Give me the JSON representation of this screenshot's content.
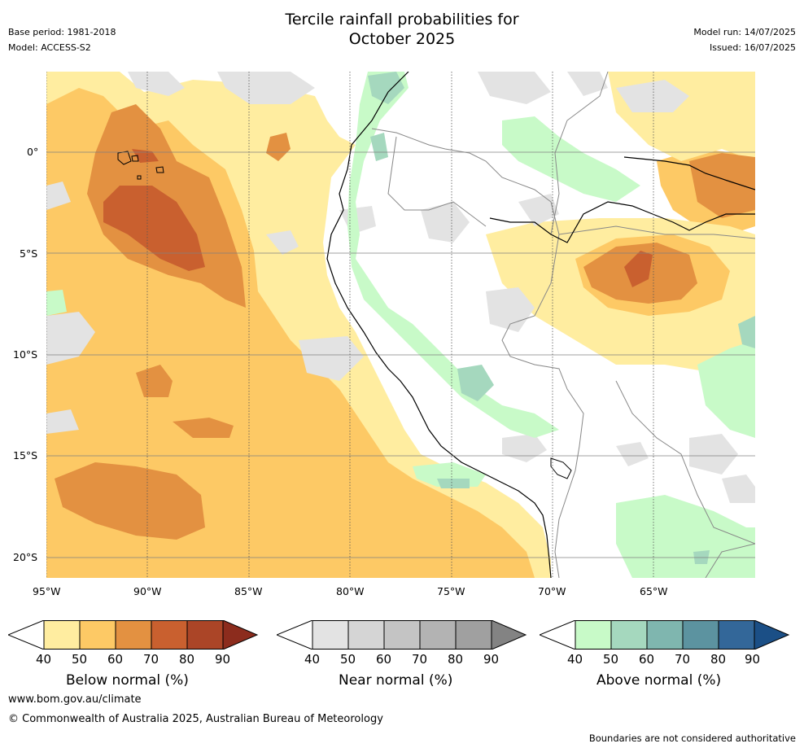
{
  "title_line1": "Tercile rainfall probabilities for",
  "title_line2": "October 2025",
  "meta_left": {
    "base_period": "Base period: 1981-2018",
    "model": "Model: ACCESS-S2"
  },
  "meta_right": {
    "model_run": "Model run: 14/07/2025",
    "issued": "Issued: 16/07/2025"
  },
  "map": {
    "lon_ticks": [
      "95°W",
      "90°W",
      "85°W",
      "80°W",
      "75°W",
      "70°W",
      "65°W"
    ],
    "lat_ticks": [
      "0°",
      "5°S",
      "10°S",
      "15°S",
      "20°S"
    ],
    "lon_range": [
      -95,
      -60
    ],
    "lat_range": [
      -21,
      4
    ]
  },
  "colorbars": [
    {
      "label": "Below normal (%)",
      "ticks": [
        "40",
        "50",
        "60",
        "70",
        "80",
        "90"
      ],
      "colors": [
        "#ffeda0",
        "#fdc965",
        "#e39141",
        "#c9602f",
        "#ab4527",
        "#8c2c1d"
      ]
    },
    {
      "label": "Near normal (%)",
      "ticks": [
        "40",
        "50",
        "60",
        "70",
        "80",
        "90"
      ],
      "colors": [
        "#e3e3e3",
        "#d5d5d5",
        "#c4c4c4",
        "#b3b3b3",
        "#a0a0a0",
        "#838383"
      ]
    },
    {
      "label": "Above normal (%)",
      "ticks": [
        "40",
        "50",
        "60",
        "70",
        "80",
        "90"
      ],
      "colors": [
        "#c8fac8",
        "#a5d8be",
        "#7fb6af",
        "#5c93a0",
        "#336799",
        "#1b4f86"
      ]
    }
  ],
  "footer": {
    "url": "www.bom.gov.au/climate",
    "copyright": "© Commonwealth of Australia 2025, Australian Bureau of Meteorology",
    "disclaimer": "Boundaries are not considered authoritative"
  }
}
